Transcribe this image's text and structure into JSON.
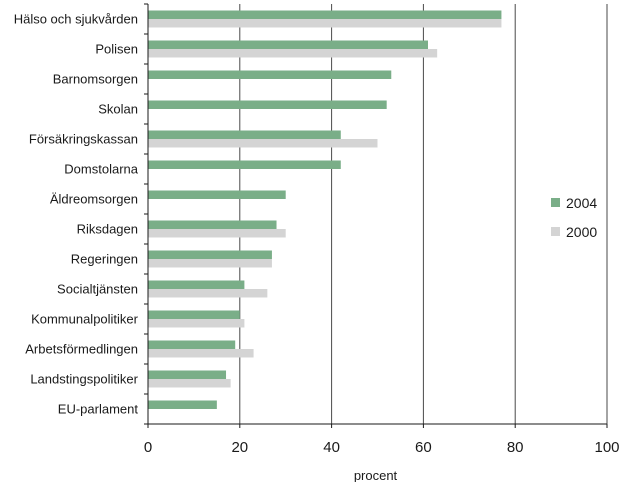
{
  "chart_data": {
    "type": "bar",
    "orientation": "horizontal",
    "categories": [
      "Hälso och sjukvården",
      "Polisen",
      "Barnomsorgen",
      "Skolan",
      "Försäkringskassan",
      "Domstolarna",
      "Äldreomsorgen",
      "Riksdagen",
      "Regeringen",
      "Socialtjänsten",
      "Kommunalpolitiker",
      "Arbetsförmedlingen",
      "Landstingspolitiker",
      "EU-parlament"
    ],
    "series": [
      {
        "name": "2004",
        "color": "#7aae88",
        "values": [
          77,
          61,
          53,
          52,
          42,
          42,
          30,
          28,
          27,
          21,
          20,
          19,
          17,
          15
        ]
      },
      {
        "name": "2000",
        "color": "#d4d4d4",
        "values": [
          77,
          63,
          null,
          null,
          50,
          null,
          null,
          30,
          27,
          26,
          21,
          23,
          18,
          null
        ]
      }
    ],
    "xlabel": "procent",
    "xlim": [
      0,
      100
    ],
    "xticks": [
      0,
      20,
      40,
      60,
      80,
      100
    ],
    "grid": "vertical",
    "legend_position": "right"
  }
}
